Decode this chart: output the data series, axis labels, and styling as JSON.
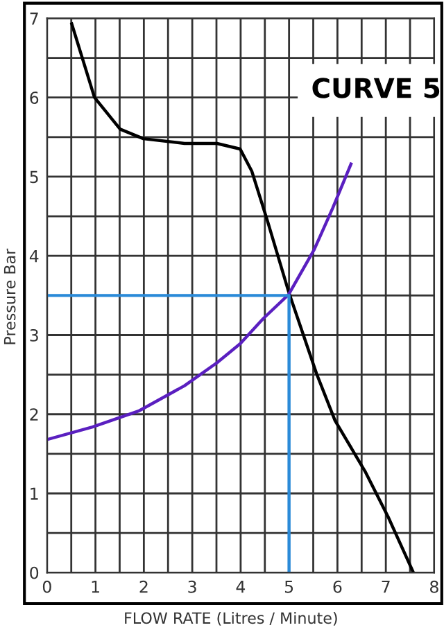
{
  "chart_data": {
    "type": "line",
    "title": "CURVE 5",
    "xlabel": "FLOW RATE (Litres / Minute)",
    "ylabel": "Pressure Bar",
    "series": [
      {
        "color": "#000000",
        "x": [
          0.51,
          0.98,
          1.51,
          1.99,
          2.84,
          3.51,
          3.99,
          4.23,
          4.56,
          4.99,
          5.28,
          5.57,
          5.95,
          6.57,
          7.05,
          7.57
        ],
        "values": [
          6.93,
          6.0,
          5.6,
          5.48,
          5.42,
          5.42,
          5.35,
          5.07,
          4.43,
          3.55,
          3.03,
          2.51,
          1.92,
          1.28,
          0.7,
          0
        ]
      },
      {
        "color": "#5a1fc0",
        "x": [
          0,
          0.94,
          1.89,
          2.84,
          3.51,
          3.99,
          4.47,
          4.99,
          5.52,
          5.9,
          6.28
        ],
        "values": [
          1.68,
          1.84,
          2.04,
          2.36,
          2.65,
          2.89,
          3.21,
          3.51,
          4.08,
          4.6,
          5.16
        ]
      },
      {
        "color": "#2a8ad8",
        "x": [
          0,
          5,
          5
        ],
        "values": [
          3.5,
          3.5,
          0
        ]
      }
    ],
    "xlim": [
      0,
      8
    ],
    "ylim": [
      0,
      7
    ],
    "xticks": [
      0,
      {
        "value": 0.5,
        "label": null
      },
      1,
      {
        "value": 1.5,
        "label": null
      },
      2,
      {
        "value": 2.5,
        "label": null
      },
      3,
      {
        "value": 3.5,
        "label": null
      },
      4,
      {
        "value": 4.5,
        "label": null
      },
      5,
      {
        "value": 5.5,
        "label": null
      },
      6,
      {
        "value": 6.5,
        "label": null
      },
      7,
      {
        "value": 7.5,
        "label": null
      },
      8
    ],
    "yticks": [
      0,
      {
        "value": 0.5,
        "label": null
      },
      1,
      {
        "value": 1.5,
        "label": null
      },
      2,
      {
        "value": 2.5,
        "label": null
      },
      3,
      {
        "value": 3.5,
        "label": null
      },
      4,
      {
        "value": 4.5,
        "label": null
      },
      5,
      {
        "value": 5.5,
        "label": null
      },
      6,
      {
        "value": 6.5,
        "label": null
      },
      7
    ],
    "grid": true,
    "marker": "none",
    "line_style": "solid"
  }
}
